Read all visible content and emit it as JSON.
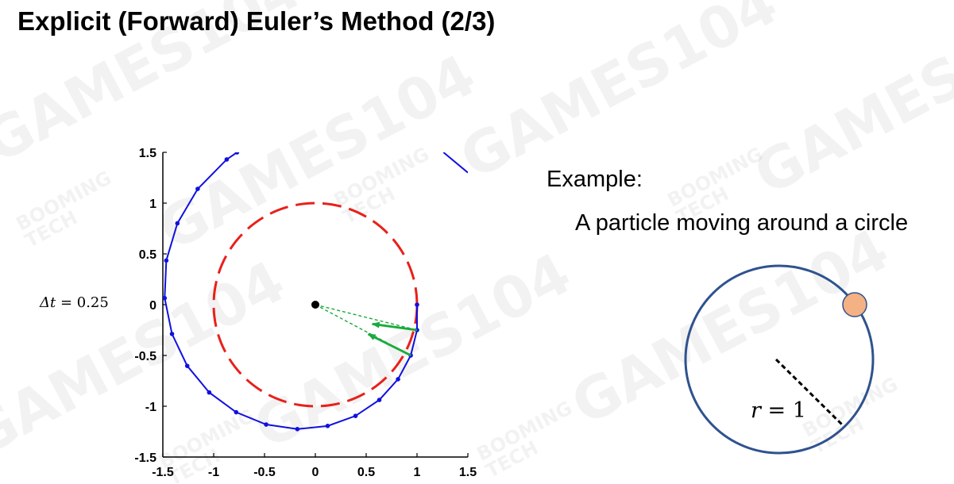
{
  "title": "Explicit (Forward) Euler’s Method (2/3)",
  "watermark": {
    "brand": "GAMES104",
    "sub_top": "BOOMING",
    "sub_bottom": "TECH"
  },
  "example": {
    "label": "Example:",
    "description": "A particle moving around a circle",
    "radius_label_var": "r",
    "radius_label_eq": " = 1",
    "colors": {
      "circle": "#2f528f",
      "particle": "#f4b183",
      "particle_edge": "#2f528f",
      "radius_line": "#000000"
    }
  },
  "chart_data": {
    "type": "line",
    "timestep_label_var": "Δt",
    "timestep_label_eq": " = 0.25",
    "xlim": [
      -1.5,
      1.5
    ],
    "ylim": [
      -1.5,
      1.5
    ],
    "xticks": [
      "-1.5",
      "-1",
      "-0.5",
      "0",
      "0.5",
      "1",
      "1.5"
    ],
    "yticks": [
      "1.5",
      "1",
      "0.5",
      "0",
      "-0.5",
      "-1",
      "-1.5"
    ],
    "grid": false,
    "reference_circle": {
      "center": [
        0,
        0
      ],
      "radius": 1,
      "style": "dashed",
      "color": "#e8201a"
    },
    "center_point": {
      "x": 0,
      "y": 0,
      "color": "#000000"
    },
    "series": [
      {
        "color": "#1010e0",
        "points": [
          [
            1.0,
            0.0
          ],
          [
            1.0,
            -0.25
          ],
          [
            0.938,
            -0.5
          ],
          [
            0.813,
            -0.734
          ],
          [
            0.629,
            -0.938
          ],
          [
            0.395,
            -1.095
          ],
          [
            0.121,
            -1.194
          ],
          [
            -0.177,
            -1.225
          ],
          [
            -0.484,
            -1.18
          ],
          [
            -0.779,
            -1.059
          ],
          [
            -1.044,
            -0.864
          ],
          [
            -1.26,
            -0.603
          ],
          [
            -1.41,
            -0.288
          ],
          [
            -1.482,
            0.065
          ],
          [
            -1.466,
            0.435
          ],
          [
            -1.357,
            0.801
          ],
          [
            -1.157,
            1.14
          ],
          [
            -0.872,
            1.43
          ],
          [
            -0.77,
            1.5
          ]
        ]
      }
    ],
    "top_right_segment": {
      "from": [
        1.26,
        1.5
      ],
      "to": [
        1.5,
        1.3
      ]
    },
    "vectors": [
      {
        "kind": "velocity",
        "style": "solid",
        "from": [
          1.0,
          -0.25
        ],
        "to": [
          0.56,
          -0.19
        ],
        "color": "#1aaa3c"
      },
      {
        "kind": "velocity",
        "style": "solid",
        "from": [
          0.94,
          -0.5
        ],
        "to": [
          0.52,
          -0.29
        ],
        "color": "#1aaa3c"
      },
      {
        "kind": "radius",
        "style": "dashed",
        "from": [
          0,
          0
        ],
        "to": [
          1.0,
          -0.25
        ],
        "color": "#1aaa3c"
      },
      {
        "kind": "radius",
        "style": "dashed",
        "from": [
          0,
          0
        ],
        "to": [
          0.94,
          -0.5
        ],
        "color": "#1aaa3c"
      }
    ]
  }
}
